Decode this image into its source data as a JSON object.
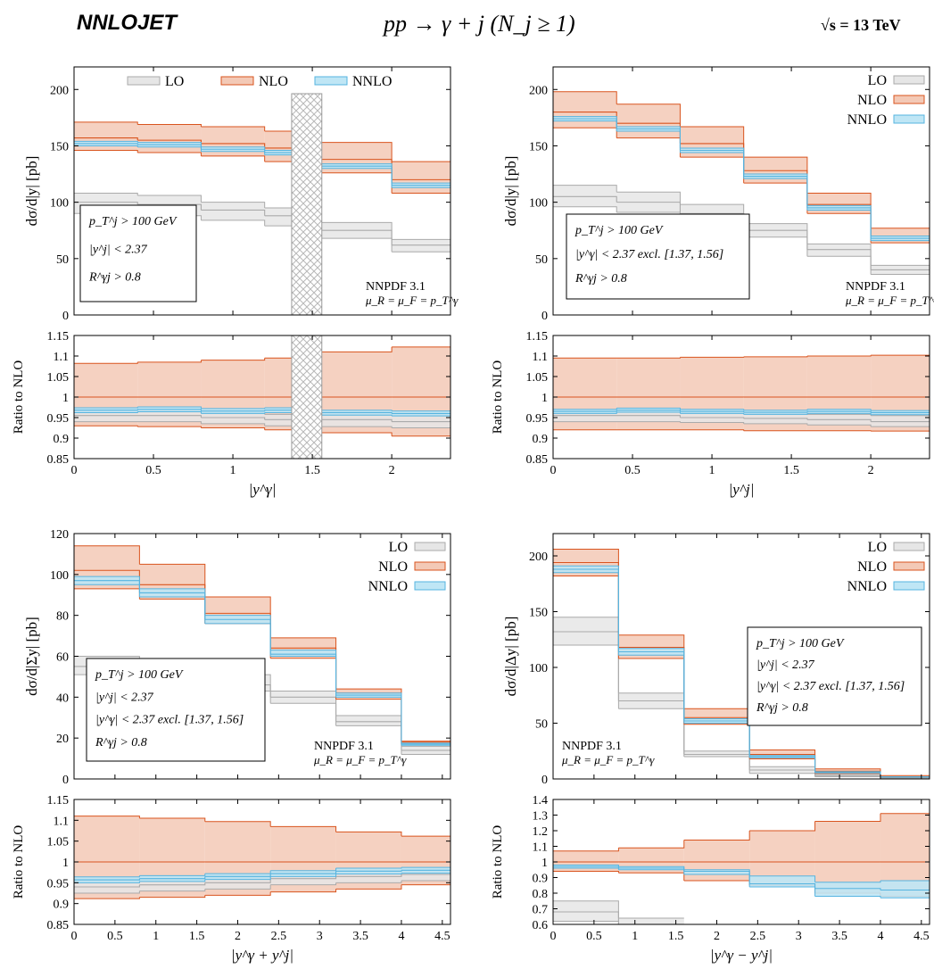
{
  "header": {
    "brand": "NNLOJET",
    "process": "pp → γ + j   (N_j ≥ 1)",
    "energy": "√s = 13 TeV"
  },
  "colors": {
    "lo_fill": "#e6e6e6",
    "lo_line": "#aaaaaa",
    "nlo_fill": "#f3c9b6",
    "nlo_line": "#d9541e",
    "nnlo_fill": "#bfe6f5",
    "nnlo_line": "#56b4e0",
    "box_line": "#000000"
  },
  "legend": {
    "lo": "LO",
    "nlo": "NLO",
    "nnlo": "NNLO"
  },
  "pdf_label": "NNPDF 3.1",
  "scale_label": "μ_R = μ_F = p_T^γ",
  "chart_data": [
    {
      "type": "area",
      "panel": "top-left",
      "xlabel": "|y^γ|",
      "ylabel": "dσ/d|y| [pb]",
      "ratio_ylabel": "Ratio to NLO",
      "xlim": [
        0,
        2.37
      ],
      "ylim": [
        0,
        220
      ],
      "ratio_ylim": [
        0.85,
        1.15
      ],
      "xticks": [
        0,
        0.5,
        1,
        1.5,
        2
      ],
      "xtick_labels": [
        "0",
        "0.5",
        "1",
        "1.5",
        "2"
      ],
      "yticks": [
        0,
        50,
        100,
        150,
        200
      ],
      "ytick_labels": [
        "0",
        "50",
        "100",
        "150",
        "200"
      ],
      "ratio_yticks": [
        0.85,
        0.9,
        0.95,
        1,
        1.05,
        1.1,
        1.15
      ],
      "ratio_ytick_labels": [
        "0.85",
        "0.9",
        "0.95",
        "1",
        "1.05",
        "1.1",
        "1.15"
      ],
      "bins": [
        [
          0,
          0.4
        ],
        [
          0.4,
          0.8
        ],
        [
          0.8,
          1.2
        ],
        [
          1.2,
          1.37
        ],
        [
          1.56,
          2.0
        ],
        [
          2.0,
          2.37
        ]
      ],
      "excluded": [
        1.37,
        1.56
      ],
      "legend_pos": "top",
      "cuts": [
        "p_T^j > 100 GeV",
        "|y^j| < 2.37",
        "R^γj > 0.8"
      ],
      "series": [
        {
          "name": "LO",
          "central": [
            100,
            98,
            93,
            88,
            75,
            62
          ],
          "low": [
            90,
            88,
            84,
            79,
            68,
            56
          ],
          "high": [
            108,
            106,
            100,
            95,
            82,
            67
          ]
        },
        {
          "name": "NLO",
          "central": [
            157,
            155,
            152,
            148,
            138,
            120
          ],
          "low": [
            146,
            144,
            141,
            136,
            126,
            108
          ],
          "high": [
            171,
            169,
            167,
            163,
            153,
            136
          ]
        },
        {
          "name": "NNLO",
          "central": [
            152,
            151,
            147,
            144,
            132,
            115
          ],
          "low": [
            150,
            149,
            145,
            142,
            130,
            113
          ],
          "high": [
            154,
            153,
            149,
            146,
            134,
            117
          ]
        }
      ],
      "ratio": [
        {
          "name": "LO",
          "central": [
            0.955,
            0.955,
            0.95,
            0.945,
            0.945,
            0.94
          ],
          "low": [
            0.94,
            0.94,
            0.935,
            0.93,
            0.928,
            0.925
          ],
          "high": [
            0.965,
            0.965,
            0.962,
            0.958,
            0.958,
            0.955
          ]
        },
        {
          "name": "NLO",
          "central": [
            1,
            1,
            1,
            1,
            1,
            1
          ],
          "low": [
            0.93,
            0.928,
            0.925,
            0.92,
            0.913,
            0.905
          ],
          "high": [
            1.082,
            1.085,
            1.09,
            1.095,
            1.11,
            1.122
          ]
        },
        {
          "name": "NNLO",
          "central": [
            0.968,
            0.97,
            0.966,
            0.968,
            0.962,
            0.96
          ],
          "low": [
            0.962,
            0.964,
            0.96,
            0.962,
            0.956,
            0.954
          ],
          "high": [
            0.974,
            0.976,
            0.972,
            0.974,
            0.968,
            0.966
          ]
        }
      ]
    },
    {
      "type": "area",
      "panel": "top-right",
      "xlabel": "|y^j|",
      "ylabel": "dσ/d|y| [pb]",
      "ratio_ylabel": "Ratio to NLO",
      "xlim": [
        0,
        2.37
      ],
      "ylim": [
        0,
        220
      ],
      "ratio_ylim": [
        0.85,
        1.15
      ],
      "xticks": [
        0,
        0.5,
        1,
        1.5,
        2
      ],
      "xtick_labels": [
        "0",
        "0.5",
        "1",
        "1.5",
        "2"
      ],
      "yticks": [
        0,
        50,
        100,
        150,
        200
      ],
      "ytick_labels": [
        "0",
        "50",
        "100",
        "150",
        "200"
      ],
      "ratio_yticks": [
        0.85,
        0.9,
        0.95,
        1,
        1.05,
        1.1,
        1.15
      ],
      "ratio_ytick_labels": [
        "0.85",
        "0.9",
        "0.95",
        "1",
        "1.05",
        "1.1",
        "1.15"
      ],
      "bins": [
        [
          0,
          0.4
        ],
        [
          0.4,
          0.8
        ],
        [
          0.8,
          1.2
        ],
        [
          1.2,
          1.6
        ],
        [
          1.6,
          2.0
        ],
        [
          2.0,
          2.37
        ]
      ],
      "excluded": null,
      "legend_pos": "top-right",
      "cuts": [
        "p_T^j > 100 GeV",
        "|y^γ| < 2.37 excl. [1.37, 1.56]",
        "R^γj > 0.8"
      ],
      "series": [
        {
          "name": "LO",
          "central": [
            105,
            100,
            90,
            75,
            58,
            40
          ],
          "low": [
            96,
            91,
            83,
            69,
            52,
            36
          ],
          "high": [
            115,
            109,
            98,
            81,
            63,
            44
          ]
        },
        {
          "name": "NLO",
          "central": [
            180,
            170,
            152,
            128,
            98,
            70
          ],
          "low": [
            166,
            157,
            140,
            117,
            90,
            64
          ],
          "high": [
            198,
            187,
            167,
            140,
            108,
            77
          ]
        },
        {
          "name": "NNLO",
          "central": [
            174,
            165,
            146,
            123,
            95,
            68
          ],
          "low": [
            172,
            163,
            144,
            121,
            93,
            66
          ],
          "high": [
            176,
            167,
            148,
            125,
            97,
            70
          ]
        }
      ],
      "ratio": [
        {
          "name": "LO",
          "central": [
            0.955,
            0.955,
            0.95,
            0.948,
            0.945,
            0.94
          ],
          "low": [
            0.94,
            0.94,
            0.938,
            0.935,
            0.932,
            0.928
          ],
          "high": [
            0.965,
            0.965,
            0.962,
            0.96,
            0.958,
            0.955
          ]
        },
        {
          "name": "NLO",
          "central": [
            1,
            1,
            1,
            1,
            1,
            1
          ],
          "low": [
            0.92,
            0.92,
            0.92,
            0.918,
            0.918,
            0.917
          ],
          "high": [
            1.095,
            1.095,
            1.097,
            1.098,
            1.1,
            1.102
          ]
        },
        {
          "name": "NNLO",
          "central": [
            0.965,
            0.968,
            0.965,
            0.963,
            0.965,
            0.962
          ],
          "low": [
            0.96,
            0.963,
            0.96,
            0.958,
            0.96,
            0.957
          ],
          "high": [
            0.97,
            0.973,
            0.97,
            0.968,
            0.97,
            0.967
          ]
        }
      ]
    },
    {
      "type": "area",
      "panel": "bottom-left",
      "xlabel": "|y^γ + y^j|",
      "ylabel": "dσ/d|Σy| [pb]",
      "ratio_ylabel": "Ratio to NLO",
      "xlim": [
        0,
        4.6
      ],
      "ylim": [
        0,
        120
      ],
      "ratio_ylim": [
        0.85,
        1.15
      ],
      "xticks": [
        0,
        0.5,
        1,
        1.5,
        2,
        2.5,
        3,
        3.5,
        4,
        4.5
      ],
      "xtick_labels": [
        "0",
        "0.5",
        "1",
        "1.5",
        "2",
        "2.5",
        "3",
        "3.5",
        "4",
        "4.5"
      ],
      "yticks": [
        0,
        20,
        40,
        60,
        80,
        100,
        120
      ],
      "ytick_labels": [
        "0",
        "20",
        "40",
        "60",
        "80",
        "100",
        "120"
      ],
      "ratio_yticks": [
        0.85,
        0.9,
        0.95,
        1,
        1.05,
        1.1,
        1.15
      ],
      "ratio_ytick_labels": [
        "0.85",
        "0.9",
        "0.95",
        "1",
        "1.05",
        "1.1",
        "1.15"
      ],
      "bins": [
        [
          0,
          0.8
        ],
        [
          0.8,
          1.6
        ],
        [
          1.6,
          2.4
        ],
        [
          2.4,
          3.2
        ],
        [
          3.2,
          4.0
        ],
        [
          4.0,
          4.6
        ]
      ],
      "excluded": null,
      "legend_pos": "top-right",
      "cuts": [
        "p_T^j > 100 GeV",
        "|y^j| < 2.37",
        "|y^γ| < 2.37 excl. [1.37, 1.56]",
        "R^γj > 0.8"
      ],
      "series": [
        {
          "name": "LO",
          "central": [
            55,
            52,
            46,
            40,
            28,
            14
          ],
          "low": [
            51,
            48,
            43,
            37,
            26,
            12
          ],
          "high": [
            60,
            56,
            51,
            43,
            31,
            16
          ]
        },
        {
          "name": "NLO",
          "central": [
            102,
            95,
            81,
            64,
            42,
            18
          ],
          "low": [
            93,
            88,
            76,
            59,
            39,
            17
          ],
          "high": [
            114,
            105,
            89,
            69,
            44,
            18.5
          ]
        },
        {
          "name": "NNLO",
          "central": [
            97,
            91,
            78,
            61,
            41,
            17
          ],
          "low": [
            95,
            89,
            76,
            60,
            40,
            16.5
          ],
          "high": [
            99,
            93,
            80,
            63,
            42,
            17.5
          ]
        }
      ],
      "ratio": [
        {
          "name": "LO",
          "central": [
            0.94,
            0.945,
            0.95,
            0.96,
            0.965,
            0.97
          ],
          "low": [
            0.925,
            0.93,
            0.935,
            0.945,
            0.95,
            0.955
          ],
          "high": [
            0.955,
            0.958,
            0.962,
            0.97,
            0.975,
            0.978
          ]
        },
        {
          "name": "NLO",
          "central": [
            1,
            1,
            1,
            1,
            1,
            1
          ],
          "low": [
            0.912,
            0.915,
            0.92,
            0.928,
            0.935,
            0.945
          ],
          "high": [
            1.11,
            1.105,
            1.097,
            1.085,
            1.072,
            1.062
          ]
        },
        {
          "name": "NNLO",
          "central": [
            0.957,
            0.96,
            0.965,
            0.972,
            0.978,
            0.98
          ],
          "low": [
            0.95,
            0.953,
            0.958,
            0.965,
            0.971,
            0.973
          ],
          "high": [
            0.964,
            0.967,
            0.972,
            0.979,
            0.985,
            0.987
          ]
        }
      ]
    },
    {
      "type": "area",
      "panel": "bottom-right",
      "xlabel": "|y^γ − y^j|",
      "ylabel": "dσ/d|Δy| [pb]",
      "ratio_ylabel": "Ratio to NLO",
      "xlim": [
        0,
        4.6
      ],
      "ylim": [
        0,
        220
      ],
      "ratio_ylim": [
        0.6,
        1.4
      ],
      "xticks": [
        0,
        0.5,
        1,
        1.5,
        2,
        2.5,
        3,
        3.5,
        4,
        4.5
      ],
      "xtick_labels": [
        "0",
        "0.5",
        "1",
        "1.5",
        "2",
        "2.5",
        "3",
        "3.5",
        "4",
        "4.5"
      ],
      "yticks": [
        0,
        50,
        100,
        150,
        200
      ],
      "ytick_labels": [
        "0",
        "50",
        "100",
        "150",
        "200"
      ],
      "ratio_yticks": [
        0.6,
        0.7,
        0.8,
        0.9,
        1,
        1.1,
        1.2,
        1.3,
        1.4
      ],
      "ratio_ytick_labels": [
        "0.6",
        "0.7",
        "0.8",
        "0.9",
        "1",
        "1.1",
        "1.2",
        "1.3",
        "1.4"
      ],
      "bins": [
        [
          0,
          0.8
        ],
        [
          0.8,
          1.6
        ],
        [
          1.6,
          2.4
        ],
        [
          2.4,
          3.2
        ],
        [
          3.2,
          4.0
        ],
        [
          4.0,
          4.6
        ]
      ],
      "excluded": null,
      "legend_pos": "top-right",
      "cuts": [
        "p_T^j > 100 GeV",
        "|y^j| < 2.37",
        "|y^γ| < 2.37 excl. [1.37, 1.56]",
        "R^γj > 0.8"
      ],
      "series": [
        {
          "name": "LO",
          "central": [
            132,
            70,
            22,
            8,
            3,
            1
          ],
          "low": [
            120,
            63,
            20,
            5,
            2,
            0.5
          ],
          "high": [
            145,
            77,
            25,
            11,
            4,
            1.5
          ]
        },
        {
          "name": "NLO",
          "central": [
            194,
            118,
            55,
            22,
            7,
            2
          ],
          "low": [
            182,
            108,
            49,
            18,
            5,
            1.5
          ],
          "high": [
            206,
            129,
            63,
            26,
            9,
            3
          ]
        },
        {
          "name": "NNLO",
          "central": [
            188,
            114,
            52,
            20,
            6,
            1.8
          ],
          "low": [
            185,
            111,
            50,
            19,
            5.5,
            1.6
          ],
          "high": [
            191,
            117,
            54,
            21,
            6.5,
            2
          ]
        }
      ],
      "ratio": [
        {
          "name": "LO",
          "central": [
            0.68,
            0.6,
            null,
            null,
            null,
            null
          ],
          "low": [
            0.62,
            0.6,
            null,
            null,
            null,
            null
          ],
          "high": [
            0.75,
            0.64,
            null,
            null,
            null,
            null
          ]
        },
        {
          "name": "NLO",
          "central": [
            1,
            1,
            1,
            1,
            1,
            1
          ],
          "low": [
            0.94,
            0.93,
            0.88,
            0.85,
            0.8,
            0.78
          ],
          "high": [
            1.07,
            1.09,
            1.14,
            1.2,
            1.26,
            1.31
          ]
        },
        {
          "name": "NNLO",
          "central": [
            0.97,
            0.96,
            0.94,
            0.86,
            0.83,
            0.82
          ],
          "low": [
            0.96,
            0.95,
            0.92,
            0.84,
            0.78,
            0.77
          ],
          "high": [
            0.98,
            0.97,
            0.95,
            0.91,
            0.87,
            0.88
          ]
        }
      ]
    }
  ]
}
